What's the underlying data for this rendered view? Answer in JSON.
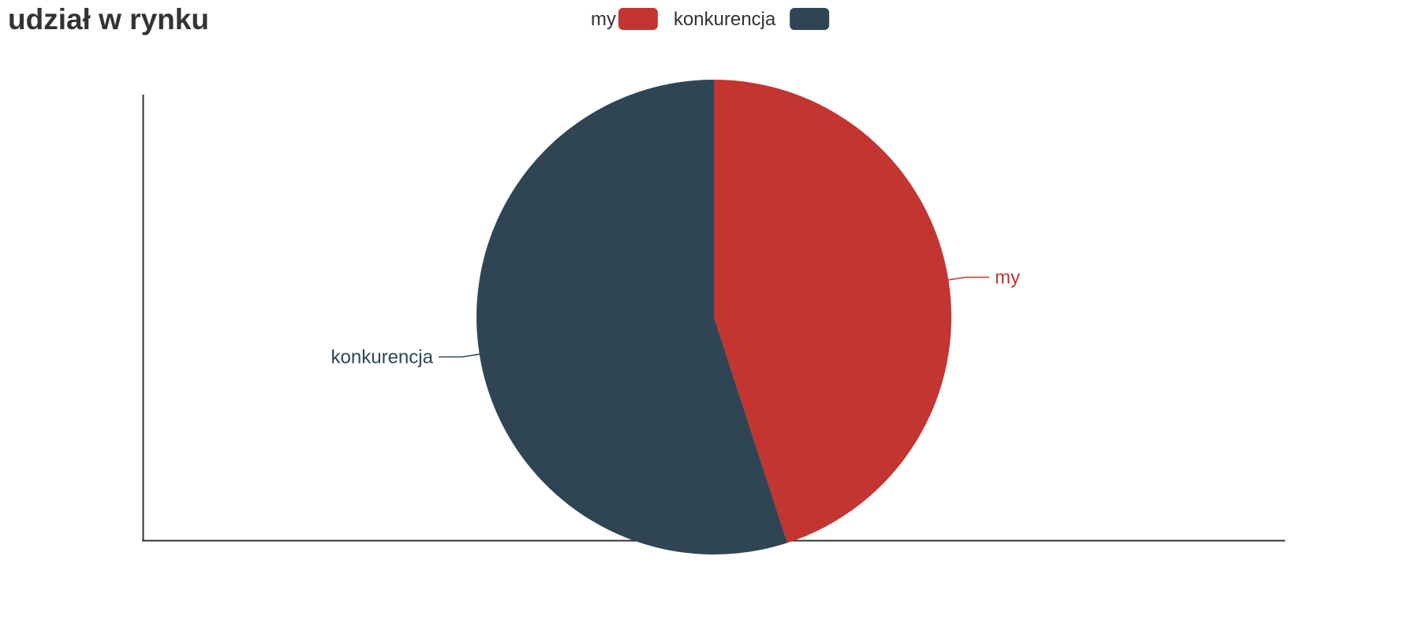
{
  "chart_data": {
    "type": "pie",
    "title": "udział w rynku",
    "legend_position": "top-center",
    "start_angle": "12 o'clock",
    "direction": "clockwise",
    "slices": [
      {
        "label": "my",
        "value": 45,
        "color": "#c23531"
      },
      {
        "label": "konkurencja",
        "value": 55,
        "color": "#2f4554"
      }
    ]
  }
}
